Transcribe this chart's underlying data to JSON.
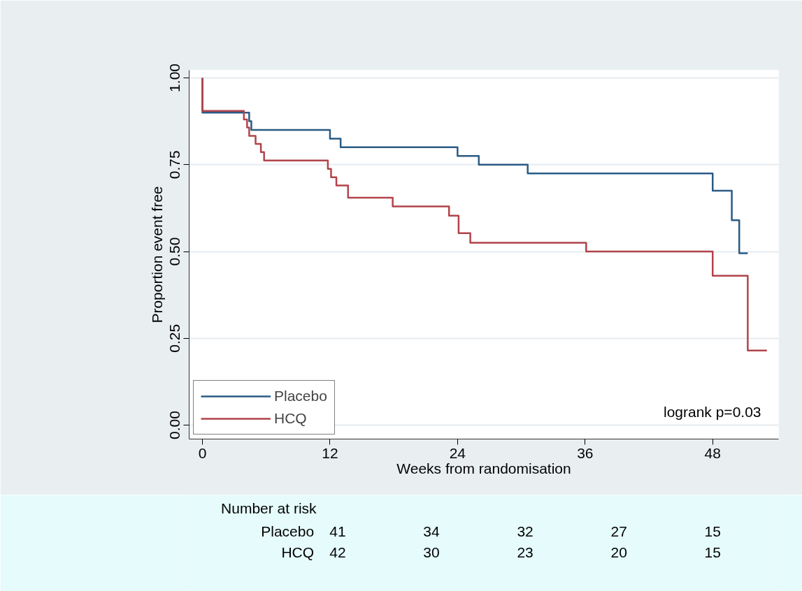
{
  "chart_data": {
    "type": "step",
    "xlabel": "Weeks from randomisation",
    "ylabel": "Proportion event free",
    "xlim": [
      -1.25,
      54.2
    ],
    "ylim": [
      -0.04,
      1.022
    ],
    "xticks": [
      0,
      12,
      24,
      36,
      48
    ],
    "yticks": [
      {
        "value": 0,
        "label": "0.00"
      },
      {
        "value": 0.25,
        "label": "0.25"
      },
      {
        "value": 0.5,
        "label": "0.50"
      },
      {
        "value": 0.75,
        "label": "0.75"
      },
      {
        "value": 1,
        "label": "1.00"
      }
    ],
    "grid": "y",
    "legend": "bottom left",
    "line_style": "solid",
    "marker": "none",
    "series": [
      {
        "name": "Placebo",
        "color": "#2a5b84",
        "x": [
          0,
          0,
          4.4,
          4.6,
          12.0,
          13.0,
          24.0,
          26.0,
          30.6,
          48.0,
          49.8,
          50.5,
          51.3
        ],
        "values": [
          1.0,
          0.9,
          0.875,
          0.85,
          0.825,
          0.8,
          0.775,
          0.75,
          0.725,
          0.675,
          0.59,
          0.495,
          0.495
        ]
      },
      {
        "name": "HCQ",
        "color": "#b2434a",
        "x": [
          0,
          0,
          3.9,
          4.2,
          4.4,
          5.0,
          5.5,
          5.8,
          11.8,
          12.1,
          12.6,
          13.7,
          17.9,
          23.2,
          24.1,
          25.2,
          36.1,
          48.0,
          51.3,
          53.1
        ],
        "values": [
          1.0,
          0.905,
          0.88,
          0.857,
          0.833,
          0.81,
          0.786,
          0.762,
          0.738,
          0.714,
          0.69,
          0.655,
          0.63,
          0.603,
          0.553,
          0.525,
          0.5,
          0.43,
          0.215,
          0.215
        ]
      }
    ],
    "annotations": [
      "logrank p=0.03",
      "Number at risk",
      "Placebo",
      "41",
      "34",
      "32",
      "27",
      "15",
      "HCQ",
      "42",
      "30",
      "23",
      "20",
      "15"
    ]
  }
}
